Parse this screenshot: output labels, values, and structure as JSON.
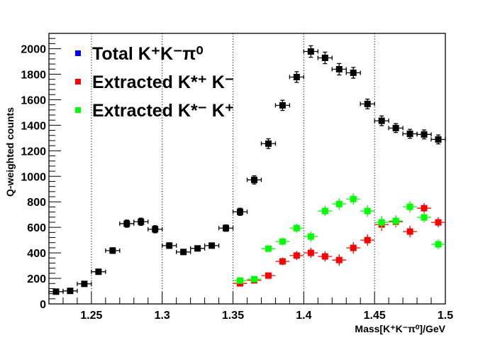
{
  "chart_data": {
    "type": "scatter",
    "title": "",
    "xlabel": "Mass[K⁺K⁻π⁰]/GeV",
    "ylabel": "Q-weighted counts",
    "xlim": [
      1.22,
      1.5
    ],
    "ylim": [
      0,
      2120
    ],
    "x_ticks": [
      "1.25",
      "1.3",
      "1.35",
      "1.4",
      "1.45",
      "1.5"
    ],
    "y_ticks": [
      "0",
      "200",
      "400",
      "600",
      "800",
      "1000",
      "1200",
      "1400",
      "1600",
      "1800",
      "2000"
    ],
    "grid": "vertical dotted lines at major x ticks",
    "legend_position": "top-left",
    "series": [
      {
        "name": "Total K⁺K⁻π⁰",
        "legend_color": "#0000ff",
        "marker_color": "#000000",
        "x": [
          1.225,
          1.235,
          1.245,
          1.255,
          1.265,
          1.275,
          1.285,
          1.295,
          1.305,
          1.315,
          1.325,
          1.335,
          1.345,
          1.355,
          1.365,
          1.375,
          1.385,
          1.395,
          1.405,
          1.415,
          1.425,
          1.435,
          1.445,
          1.455,
          1.465,
          1.475,
          1.485,
          1.495
        ],
        "y": [
          96,
          102,
          157,
          252,
          418,
          629,
          644,
          585,
          457,
          407,
          435,
          457,
          594,
          722,
          972,
          1256,
          1556,
          1778,
          1978,
          1928,
          1839,
          1811,
          1567,
          1435,
          1378,
          1333,
          1328,
          1289
        ],
        "yerr": [
          15,
          15,
          18,
          20,
          22,
          28,
          28,
          28,
          22,
          20,
          20,
          20,
          25,
          28,
          32,
          38,
          40,
          42,
          45,
          45,
          45,
          42,
          38,
          38,
          35,
          35,
          35,
          35
        ]
      },
      {
        "name": "Extracted K*⁺ K⁻",
        "legend_color": "#ff0000",
        "marker_color": "#ff0000",
        "x": [
          1.355,
          1.365,
          1.375,
          1.385,
          1.395,
          1.405,
          1.415,
          1.425,
          1.435,
          1.445,
          1.455,
          1.465,
          1.475,
          1.485,
          1.495
        ],
        "y": [
          161,
          185,
          222,
          333,
          379,
          400,
          372,
          344,
          439,
          500,
          622,
          644,
          567,
          750,
          639
        ],
        "yerr": [
          20,
          20,
          25,
          30,
          35,
          40,
          40,
          45,
          45,
          45,
          50,
          45,
          45,
          40,
          40
        ]
      },
      {
        "name": "Extracted K*⁻ K⁺",
        "legend_color": "#00ff00",
        "marker_color": "#00ff00",
        "x": [
          1.355,
          1.365,
          1.375,
          1.385,
          1.395,
          1.405,
          1.415,
          1.425,
          1.435,
          1.445,
          1.455,
          1.465,
          1.475,
          1.485,
          1.495
        ],
        "y": [
          183,
          194,
          433,
          489,
          594,
          528,
          728,
          783,
          822,
          728,
          639,
          650,
          761,
          678,
          467
        ],
        "yerr": [
          20,
          20,
          25,
          30,
          35,
          40,
          40,
          45,
          45,
          45,
          50,
          45,
          45,
          40,
          40
        ]
      }
    ]
  }
}
